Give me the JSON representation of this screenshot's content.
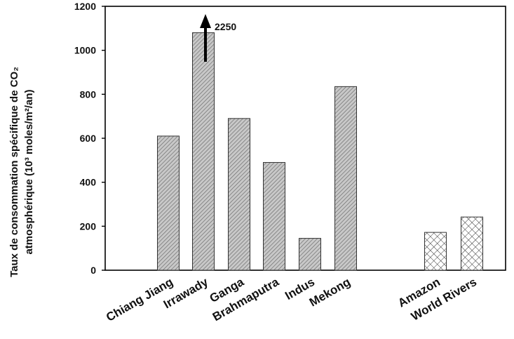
{
  "chart_data": {
    "type": "bar",
    "categories": [
      "Chiang Jiang",
      "Irrawady",
      "Ganga",
      "Brahmaputra",
      "Indus",
      "Mekong",
      "Amazon",
      "World Rivers"
    ],
    "values": [
      610,
      1080,
      690,
      490,
      145,
      835,
      172,
      242
    ],
    "fill_patterns": [
      "hatch",
      "hatch",
      "hatch",
      "hatch",
      "hatch",
      "hatch",
      "crosshatch",
      "crosshatch"
    ],
    "ylim": [
      0,
      1200
    ],
    "yticks": [
      "0",
      "200",
      "400",
      "600",
      "800",
      "1000",
      "1200"
    ],
    "ylabel_line1": "Taux de consommation spécifique de CO₂",
    "ylabel_line2": "atmosphérique (10³ moles/m²/an)",
    "annotation": {
      "category": "Irrawady",
      "text": "2250",
      "arrow": "up"
    },
    "grid": false,
    "legend": "none",
    "colors": {
      "bar_fill": "#c4c4c4",
      "hatch_line": "#6a6a6a",
      "axis": "#000000"
    }
  }
}
